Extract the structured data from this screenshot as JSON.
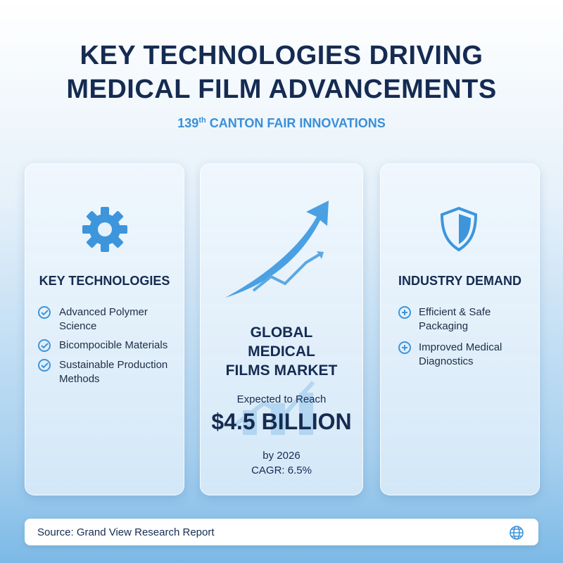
{
  "header": {
    "title_lines": [
      "KEY TECHNOLOGIES DRIVING",
      "MEDICAL FILM ADVANCEMENTS"
    ],
    "subtitle": {
      "number": "139",
      "suffix": "th",
      "text": "CANTON FAIR INNOVATIONS"
    }
  },
  "cards": [
    {
      "heading": "KEY TECHNOLOGIES",
      "items": [
        "Advanced Polymer Science",
        "Bicompocible Materials",
        "Sustainable Production Methods"
      ]
    },
    {
      "heading": "GLOBAL MEDICAL FILMS MARKET",
      "lead": "Expected to Reach",
      "figure": "$4.5 BILLION",
      "year": "by 2026",
      "cagr": "CAGR: 6.5%"
    },
    {
      "heading": "INDUSTRY DEMAND",
      "items": [
        "Efficient & Safe Packaging",
        "Improved Medical Diagnostics"
      ]
    }
  ],
  "footer": {
    "source": "Source: Grand View Research Report"
  }
}
